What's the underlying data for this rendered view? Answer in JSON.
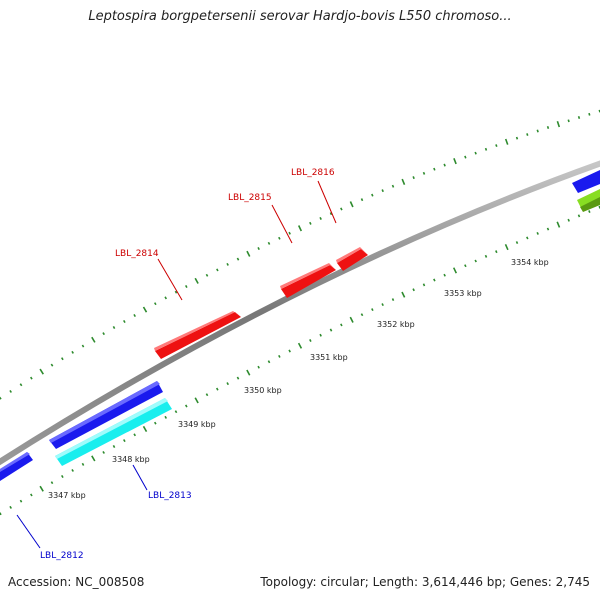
{
  "title": "Leptospira borgpetersenii serovar Hardjo-bovis L550 chromoso...",
  "footer": {
    "accession": "Accession: NC_008508",
    "topology": "Topology: circular; Length: 3,614,446 bp; Genes: 2,745"
  },
  "colors": {
    "backbone": "#8a8a8a",
    "tick": "#2e8b2e",
    "forward_gene": "#ee1111",
    "reverse_gene": "#1a1aee",
    "cyan_gene": "#19eeee",
    "green_gene": "#88dd22",
    "forward_label": "#cc0000",
    "reverse_label": "#0000cc"
  },
  "scale_labels": [
    "3347 kbp",
    "3348 kbp",
    "3349 kbp",
    "3350 kbp",
    "3351 kbp",
    "3352 kbp",
    "3353 kbp",
    "3354 kbp"
  ],
  "gene_labels": [
    {
      "name": "LBL_2816",
      "strand": "forward"
    },
    {
      "name": "LBL_2815",
      "strand": "forward"
    },
    {
      "name": "LBL_2814",
      "strand": "forward"
    },
    {
      "name": "LBL_2813",
      "strand": "reverse"
    },
    {
      "name": "LBL_2812",
      "strand": "reverse"
    }
  ]
}
